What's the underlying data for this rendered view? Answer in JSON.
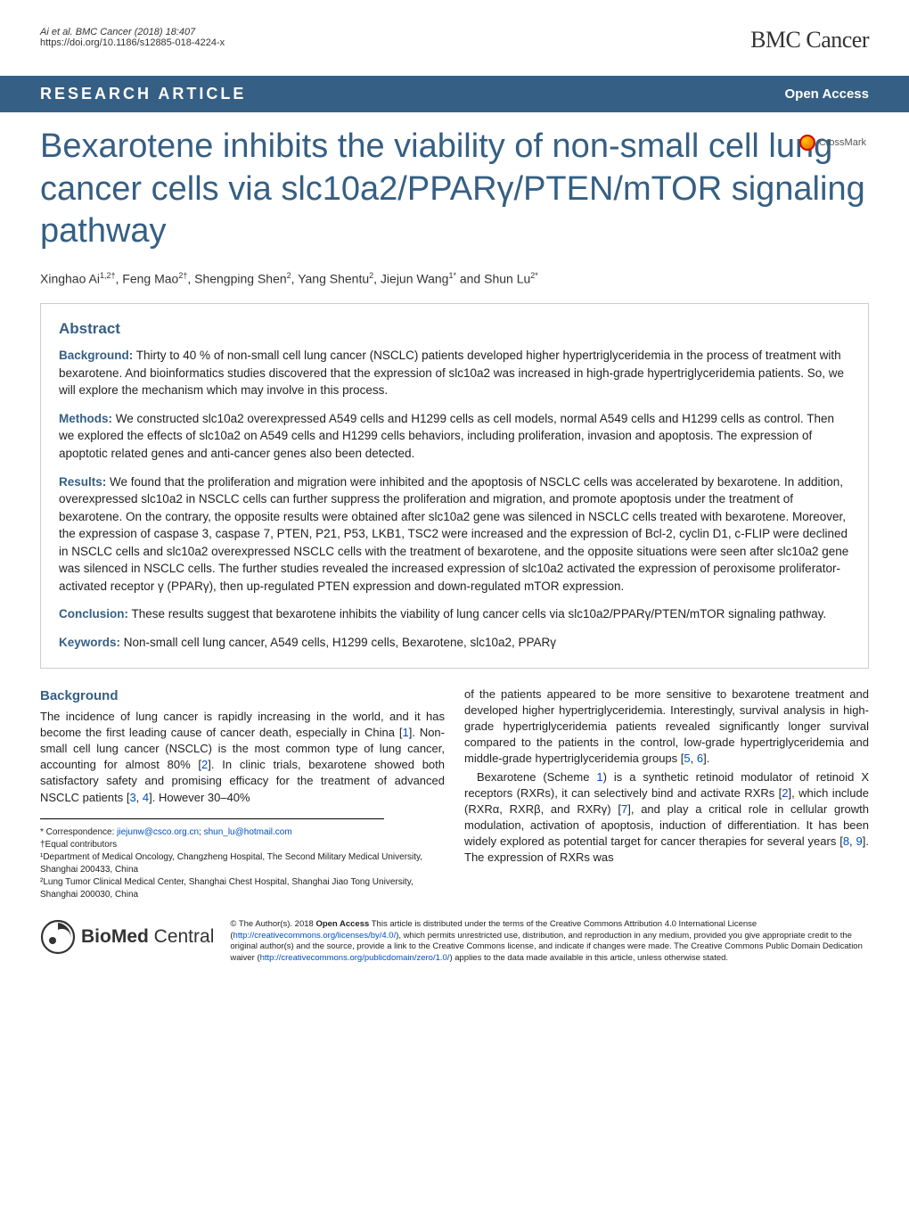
{
  "header": {
    "citation": "Ai et al. BMC Cancer  (2018) 18:407",
    "doi": "https://doi.org/10.1186/s12885-018-4224-x",
    "journal": "BMC Cancer"
  },
  "bar": {
    "article_type": "RESEARCH ARTICLE",
    "open_access": "Open Access"
  },
  "crossmark": "CrossMark",
  "title": "Bexarotene inhibits the viability of non-small cell lung cancer cells via slc10a2/PPARγ/PTEN/mTOR signaling pathway",
  "authors_html": "Xinghao Ai<sup>1,2†</sup>, Feng Mao<sup>2†</sup>, Shengping Shen<sup>2</sup>, Yang Shentu<sup>2</sup>, Jiejun Wang<sup>1*</sup> and Shun Lu<sup>2*</sup>",
  "abstract": {
    "heading": "Abstract",
    "background_label": "Background:",
    "background": "Thirty to 40 % of non-small cell lung cancer (NSCLC) patients developed higher hypertriglyceridemia in the process of treatment with bexarotene. And bioinformatics studies discovered that the expression of slc10a2 was increased in high-grade hypertriglyceridemia patients. So, we will explore the mechanism which may involve in this process.",
    "methods_label": "Methods:",
    "methods": "We constructed slc10a2 overexpressed A549 cells and H1299 cells as cell models, normal A549 cells and H1299 cells as control. Then we explored the effects of slc10a2 on A549 cells and H1299 cells behaviors, including proliferation, invasion and apoptosis. The expression of apoptotic related genes and anti-cancer genes also been detected.",
    "results_label": "Results:",
    "results": "We found that the proliferation and migration were inhibited and the apoptosis of NSCLC cells was accelerated by bexarotene. In addition, overexpressed slc10a2 in NSCLC cells can further suppress the proliferation and migration, and promote apoptosis under the treatment of bexarotene. On the contrary, the opposite results were obtained after slc10a2 gene was silenced in NSCLC cells treated with bexarotene. Moreover, the expression of caspase 3, caspase 7, PTEN, P21, P53, LKB1, TSC2 were increased and the expression of Bcl-2, cyclin D1, c-FLIP were declined in NSCLC cells and slc10a2 overexpressed NSCLC cells with the treatment of bexarotene, and the opposite situations were seen after slc10a2 gene was silenced in NSCLC cells. The further studies revealed the increased expression of slc10a2 activated the expression of peroxisome proliferator-activated receptor γ (PPARγ), then up-regulated PTEN expression and down-regulated mTOR expression.",
    "conclusion_label": "Conclusion:",
    "conclusion": "These results suggest that bexarotene inhibits the viability of lung cancer cells via slc10a2/PPARγ/PTEN/mTOR signaling pathway.",
    "keywords_label": "Keywords:",
    "keywords": "Non-small cell lung cancer, A549 cells, H1299 cells, Bexarotene, slc10a2, PPARγ"
  },
  "body": {
    "background_h": "Background",
    "col1_p1": "The incidence of lung cancer is rapidly increasing in the world, and it has become the first leading cause of cancer death, especially in China [",
    "ref1": "1",
    "col1_p1b": "]. Non-small cell lung cancer (NSCLC) is the most common type of lung cancer, accounting for almost 80% [",
    "ref2": "2",
    "col1_p1c": "]. In clinic trials, bexarotene showed both satisfactory safety and promising efficacy for the treatment of advanced NSCLC patients [",
    "ref3": "3",
    "ref4": "4",
    "col1_p1d": "]. However 30–40%",
    "col2_p1": "of the patients appeared to be more sensitive to bexarotene treatment and developed higher hypertriglyceridemia. Interestingly, survival analysis in high-grade hypertriglyceridemia patients revealed significantly longer survival compared to the patients in the control, low-grade hypertriglyceridemia and middle-grade hypertriglyceridemia groups [",
    "ref5": "5",
    "ref6": "6",
    "col2_p1b": "].",
    "col2_p2a": "Bexarotene (Scheme ",
    "schemeref": "1",
    "col2_p2b": ") is a synthetic retinoid modulator of retinoid X receptors (RXRs), it can selectively bind and activate RXRs [",
    "ref2b": "2",
    "col2_p2c": "], which include (RXRα, RXRβ, and RXRγ) [",
    "ref7": "7",
    "col2_p2d": "], and play a critical role in cellular growth modulation, activation of apoptosis, induction of differentiation. It has been widely explored as potential target for cancer therapies for several years [",
    "ref8": "8",
    "ref9": "9",
    "col2_p2e": "]. The expression of RXRs was"
  },
  "correspondence": {
    "line1_pre": "* Correspondence: ",
    "email1": "jiejunw@csco.org.cn",
    "sep": "; ",
    "email2": "shun_lu@hotmail.com",
    "line2": "†Equal contributors",
    "line3": "¹Department of Medical Oncology, Changzheng Hospital, The Second Military Medical University, Shanghai 200433, China",
    "line4": "²Lung Tumor Clinical Medical Center, Shanghai Chest Hospital, Shanghai Jiao Tong University, Shanghai 200030, China"
  },
  "footer": {
    "logo_bold": "BioMed",
    "logo_rest": " Central",
    "license_pre": "© The Author(s). 2018 ",
    "license_bold": "Open Access",
    "license_p1": " This article is distributed under the terms of the Creative Commons Attribution 4.0 International License (",
    "license_url1": "http://creativecommons.org/licenses/by/4.0/",
    "license_p2": "), which permits unrestricted use, distribution, and reproduction in any medium, provided you give appropriate credit to the original author(s) and the source, provide a link to the Creative Commons license, and indicate if changes were made. The Creative Commons Public Domain Dedication waiver (",
    "license_url2": "http://creativecommons.org/publicdomain/zero/1.0/",
    "license_p3": ") applies to the data made available in this article, unless otherwise stated."
  },
  "colors": {
    "brand_blue": "#355f84",
    "link_blue": "#004fc1"
  }
}
